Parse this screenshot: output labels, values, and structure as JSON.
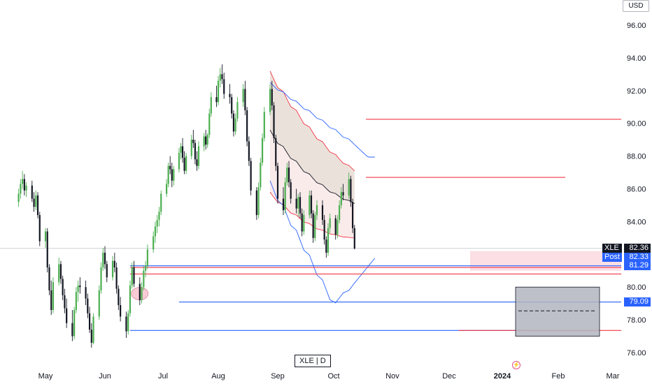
{
  "header": {
    "currency": "USD"
  },
  "symbol_box": {
    "label": "XLE  |  D"
  },
  "price_tags": {
    "last": {
      "label": "XLE",
      "value": "82.36",
      "bg": "#131722"
    },
    "post": {
      "label": "Post",
      "value": "82.33",
      "bg": "#2962ff"
    },
    "level": {
      "value": "81.29",
      "bg": "#2962ff"
    },
    "level2": {
      "value": "79.09",
      "bg": "#2962ff"
    }
  },
  "colors": {
    "up": "#4caf50",
    "down": "#131722",
    "red_line": "#f23645",
    "blue_line": "#2962ff",
    "band_fill": "#d7c4b8",
    "box_fill": "#b2b5be"
  },
  "chart_data": {
    "type": "candlestick",
    "symbol": "XLE",
    "interval": "D",
    "y_axis": {
      "ticks": [
        "76.00",
        "78.00",
        "80.00",
        "82.00",
        "84.00",
        "86.00",
        "88.00",
        "90.00",
        "92.00",
        "94.00",
        "96.00"
      ],
      "range": [
        75.2,
        97.6
      ]
    },
    "x_axis": {
      "labels": [
        "May",
        "Jun",
        "Jul",
        "Aug",
        "Sep",
        "Oct",
        "Nov",
        "Dec",
        "2024",
        "Feb",
        "Mar"
      ]
    },
    "last_price": 82.36,
    "post_price": 82.33,
    "horizontal_levels": [
      {
        "price": 90.25,
        "color": "red",
        "from": "Oct 2023",
        "to": "Mar 2024"
      },
      {
        "price": 86.7,
        "color": "red",
        "from": "Oct 2023",
        "to": "Jan 2024"
      },
      {
        "price": 81.3,
        "color": "blue",
        "from": "Jun 2023",
        "to": "Mar 2024"
      },
      {
        "price": 81.2,
        "color": "red",
        "from": "Jun 2023",
        "to": "Mar 2024"
      },
      {
        "price": 80.8,
        "color": "red",
        "from": "Jun 2023",
        "to": "Mar 2024"
      },
      {
        "price": 79.09,
        "color": "blue",
        "from": "Jul 2023",
        "to": "Mar 2024"
      },
      {
        "price": 77.35,
        "color": "blue",
        "from": "Jun 2023",
        "to": "Dec 2023"
      },
      {
        "price": 77.35,
        "color": "red",
        "from": "Dec 2023",
        "to": "Mar 2024"
      }
    ],
    "target_box": {
      "from": "Jan 2024",
      "to": "Feb 2024",
      "top": 80.0,
      "bottom": 77.0,
      "mid": 78.55
    },
    "candles": [
      [
        85.2,
        86.0,
        84.9,
        85.7
      ],
      [
        85.7,
        86.6,
        85.4,
        86.3
      ],
      [
        86.3,
        87.1,
        86.0,
        86.6
      ],
      [
        86.6,
        86.9,
        85.6,
        85.9
      ],
      [
        85.9,
        86.4,
        85.5,
        86.2
      ],
      [
        86.2,
        86.5,
        85.2,
        85.4
      ],
      [
        85.4,
        85.8,
        84.6,
        84.9
      ],
      [
        84.9,
        85.9,
        84.7,
        85.6
      ],
      [
        85.6,
        85.8,
        84.2,
        84.4
      ],
      [
        84.4,
        84.6,
        82.5,
        82.8
      ],
      [
        82.8,
        83.6,
        82.4,
        83.4
      ],
      [
        83.4,
        83.6,
        80.9,
        81.2
      ],
      [
        81.2,
        81.4,
        79.5,
        79.8
      ],
      [
        79.8,
        80.4,
        78.3,
        78.6
      ],
      [
        78.6,
        80.6,
        78.4,
        80.3
      ],
      [
        80.3,
        81.8,
        80.1,
        81.4
      ],
      [
        81.4,
        81.6,
        80.2,
        80.5
      ],
      [
        80.5,
        80.7,
        79.2,
        79.5
      ],
      [
        79.5,
        79.9,
        78.4,
        78.7
      ],
      [
        78.7,
        79.3,
        77.5,
        77.8
      ],
      [
        77.8,
        78.6,
        76.7,
        77.0
      ],
      [
        77.0,
        78.8,
        76.8,
        78.6
      ],
      [
        78.6,
        80.0,
        78.4,
        79.7
      ],
      [
        79.7,
        80.4,
        79.1,
        80.1
      ],
      [
        80.1,
        80.6,
        79.6,
        80.0
      ],
      [
        80.0,
        80.4,
        78.9,
        79.3
      ],
      [
        79.3,
        79.6,
        78.1,
        78.4
      ],
      [
        78.4,
        78.8,
        77.2,
        77.4
      ],
      [
        77.4,
        77.8,
        76.3,
        76.6
      ],
      [
        76.6,
        78.4,
        76.5,
        78.2
      ],
      [
        78.2,
        80.1,
        78.0,
        79.8
      ],
      [
        79.8,
        81.5,
        79.6,
        81.2
      ],
      [
        81.2,
        82.4,
        81.0,
        82.1
      ],
      [
        82.1,
        82.5,
        81.1,
        81.4
      ],
      [
        81.4,
        81.6,
        80.3,
        80.6
      ],
      [
        80.6,
        81.9,
        80.4,
        81.6
      ],
      [
        81.6,
        82.1,
        80.9,
        81.2
      ],
      [
        81.2,
        81.5,
        79.6,
        79.9
      ],
      [
        79.9,
        80.1,
        78.6,
        78.9
      ],
      [
        78.9,
        79.4,
        77.9,
        78.2
      ],
      [
        78.2,
        78.5,
        76.9,
        77.3
      ],
      [
        77.3,
        78.6,
        77.1,
        78.4
      ],
      [
        78.4,
        80.4,
        78.2,
        80.1
      ],
      [
        80.1,
        81.5,
        79.9,
        81.2
      ],
      [
        81.2,
        81.6,
        80.0,
        80.2
      ],
      [
        80.2,
        80.6,
        78.9,
        79.2
      ],
      [
        79.2,
        80.3,
        79.0,
        80.0
      ],
      [
        80.0,
        81.3,
        79.8,
        81.0
      ],
      [
        81.0,
        81.6,
        80.6,
        81.3
      ],
      [
        81.3,
        82.6,
        81.1,
        82.3
      ],
      [
        82.3,
        83.4,
        82.1,
        83.1
      ],
      [
        83.1,
        84.0,
        82.7,
        83.7
      ],
      [
        83.7,
        84.4,
        83.3,
        84.1
      ],
      [
        84.1,
        84.9,
        83.7,
        84.6
      ],
      [
        84.6,
        85.9,
        84.4,
        85.7
      ],
      [
        85.7,
        86.6,
        85.5,
        86.3
      ],
      [
        86.3,
        87.6,
        86.1,
        87.4
      ],
      [
        87.4,
        88.0,
        86.9,
        87.2
      ],
      [
        87.2,
        87.6,
        86.1,
        86.5
      ],
      [
        86.5,
        87.4,
        86.2,
        87.2
      ],
      [
        87.2,
        88.5,
        87.0,
        88.2
      ],
      [
        88.2,
        88.8,
        87.8,
        88.6
      ],
      [
        88.6,
        89.1,
        87.6,
        87.9
      ],
      [
        87.9,
        88.3,
        86.9,
        87.1
      ],
      [
        87.1,
        88.2,
        86.9,
        88.0
      ],
      [
        88.0,
        89.3,
        87.8,
        89.0
      ],
      [
        89.0,
        89.6,
        88.5,
        88.8
      ],
      [
        88.8,
        89.0,
        87.5,
        87.8
      ],
      [
        87.8,
        88.3,
        87.1,
        87.4
      ],
      [
        87.4,
        88.9,
        87.2,
        88.6
      ],
      [
        88.6,
        89.4,
        88.3,
        89.2
      ],
      [
        89.2,
        89.6,
        88.4,
        88.7
      ],
      [
        88.7,
        89.4,
        88.5,
        89.3
      ],
      [
        89.3,
        90.9,
        89.1,
        90.6
      ],
      [
        90.6,
        91.9,
        90.4,
        91.6
      ],
      [
        91.6,
        92.3,
        91.0,
        91.3
      ],
      [
        91.3,
        92.9,
        91.1,
        92.6
      ],
      [
        92.6,
        93.4,
        92.2,
        93.0
      ],
      [
        93.0,
        93.6,
        92.4,
        92.7
      ],
      [
        92.7,
        93.1,
        91.5,
        91.8
      ],
      [
        91.8,
        92.4,
        91.2,
        91.6
      ],
      [
        91.6,
        91.8,
        90.3,
        90.6
      ],
      [
        90.6,
        90.8,
        89.2,
        89.5
      ],
      [
        89.5,
        90.6,
        89.3,
        90.3
      ],
      [
        90.3,
        91.6,
        90.1,
        91.3
      ],
      [
        91.3,
        92.4,
        91.0,
        92.1
      ],
      [
        92.1,
        92.6,
        90.5,
        90.8
      ],
      [
        90.8,
        91.0,
        88.6,
        88.9
      ],
      [
        88.9,
        89.2,
        87.4,
        87.7
      ],
      [
        87.7,
        87.9,
        85.6,
        85.9
      ],
      [
        85.9,
        86.1,
        84.1,
        84.4
      ],
      [
        84.4,
        86.4,
        84.2,
        86.1
      ],
      [
        86.1,
        87.9,
        85.9,
        87.6
      ],
      [
        87.6,
        89.4,
        87.4,
        89.1
      ],
      [
        89.1,
        91.0,
        88.9,
        90.7
      ],
      [
        90.7,
        92.4,
        90.5,
        92.1
      ],
      [
        92.1,
        92.6,
        90.8,
        91.1
      ],
      [
        91.1,
        91.3,
        88.8,
        89.1
      ],
      [
        89.1,
        89.3,
        87.1,
        87.4
      ],
      [
        87.4,
        87.6,
        85.1,
        85.4
      ],
      [
        85.4,
        86.1,
        84.4,
        84.7
      ],
      [
        84.7,
        86.7,
        84.5,
        86.4
      ],
      [
        86.4,
        87.6,
        86.2,
        87.3
      ],
      [
        87.3,
        87.7,
        86.1,
        86.4
      ],
      [
        86.4,
        86.6,
        85.1,
        85.4
      ],
      [
        85.4,
        86.0,
        84.5,
        84.8
      ],
      [
        84.8,
        85.7,
        84.3,
        85.5
      ],
      [
        85.5,
        85.8,
        84.2,
        84.5
      ],
      [
        84.5,
        84.8,
        83.1,
        83.4
      ],
      [
        83.4,
        84.7,
        83.2,
        84.4
      ],
      [
        84.4,
        85.9,
        84.2,
        85.6
      ],
      [
        85.6,
        85.9,
        84.2,
        84.5
      ],
      [
        84.5,
        84.7,
        82.7,
        83.0
      ],
      [
        83.0,
        84.6,
        82.8,
        84.4
      ],
      [
        84.4,
        85.3,
        84.1,
        85.0
      ],
      [
        85.0,
        85.3,
        83.8,
        84.1
      ],
      [
        84.1,
        84.4,
        82.6,
        82.9
      ],
      [
        82.9,
        83.1,
        81.8,
        82.1
      ],
      [
        82.1,
        83.9,
        81.9,
        83.6
      ],
      [
        83.6,
        84.5,
        83.3,
        84.2
      ],
      [
        84.2,
        84.4,
        82.9,
        83.2
      ],
      [
        83.2,
        84.4,
        83.0,
        84.1
      ],
      [
        84.1,
        85.3,
        83.9,
        85.0
      ],
      [
        85.0,
        86.1,
        84.8,
        85.8
      ],
      [
        85.8,
        86.3,
        85.3,
        85.6
      ],
      [
        85.6,
        87.0,
        85.4,
        86.6
      ],
      [
        86.6,
        86.8,
        84.9,
        85.2
      ],
      [
        85.2,
        85.4,
        83.3,
        83.6
      ],
      [
        83.6,
        83.8,
        82.3,
        82.36
      ]
    ]
  }
}
